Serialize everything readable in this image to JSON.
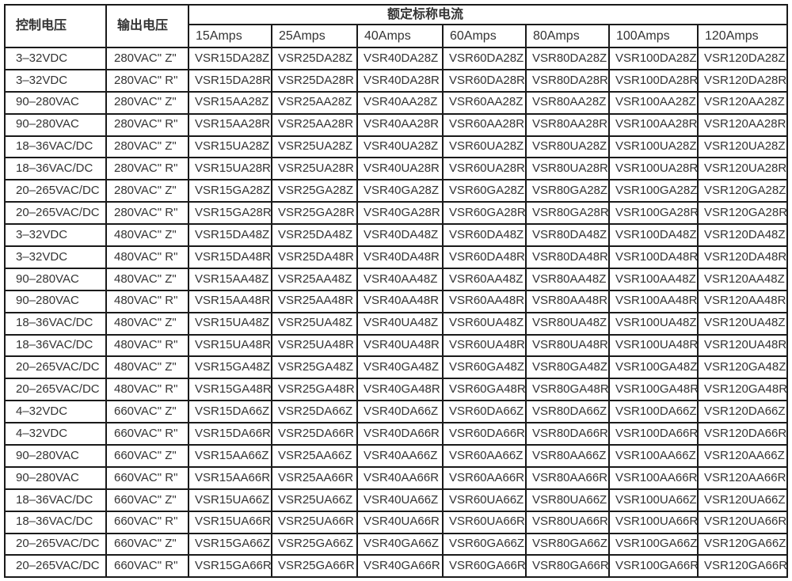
{
  "colors": {
    "border": "#1a1a1a",
    "text": "#333333",
    "background": "#ffffff"
  },
  "table": {
    "header": {
      "control_voltage_label": "控制电压",
      "output_voltage_label": "输出电压",
      "rated_current_label": "额定标称电流",
      "amp_columns": [
        "15Amps",
        "25Amps",
        "40Amps",
        "60Amps",
        "80Amps",
        "100Amps",
        "120Amps"
      ]
    },
    "rows": [
      {
        "control": "3–32VDC",
        "output": "280VAC\" Z\"",
        "parts": [
          "VSR15DA28Z",
          "VSR25DA28Z",
          "VSR40DA28Z",
          "VSR60DA28Z",
          "VSR80DA28Z",
          "VSR100DA28Z",
          "VSR120DA28Z"
        ]
      },
      {
        "control": "3–32VDC",
        "output": "280VAC\" R\"",
        "parts": [
          "VSR15DA28R",
          "VSR25DA28R",
          "VSR40DA28R",
          "VSR60DA28R",
          "VSR80DA28R",
          "VSR100DA28R",
          "VSR120DA28R"
        ]
      },
      {
        "control": "90–280VAC",
        "output": "280VAC\" Z\"",
        "parts": [
          "VSR15AA28Z",
          "VSR25AA28Z",
          "VSR40AA28Z",
          "VSR60AA28Z",
          "VSR80AA28Z",
          "VSR100AA28Z",
          "VSR120AA28Z"
        ]
      },
      {
        "control": "90–280VAC",
        "output": "280VAC\" R\"",
        "parts": [
          "VSR15AA28R",
          "VSR25AA28R",
          "VSR40AA28R",
          "VSR60AA28R",
          "VSR80AA28R",
          "VSR100AA28R",
          "VSR120AA28R"
        ]
      },
      {
        "control": "18–36VAC/DC",
        "output": "280VAC\" Z\"",
        "parts": [
          "VSR15UA28Z",
          "VSR25UA28Z",
          "VSR40UA28Z",
          "VSR60UA28Z",
          "VSR80UA28Z",
          "VSR100UA28Z",
          "VSR120UA28Z"
        ]
      },
      {
        "control": "18–36VAC/DC",
        "output": "280VAC\" R\"",
        "parts": [
          "VSR15UA28R",
          "VSR25UA28R",
          "VSR40UA28R",
          "VSR60UA28R",
          "VSR80UA28R",
          "VSR100UA28R",
          "VSR120UA28R"
        ]
      },
      {
        "control": "20–265VAC/DC",
        "output": "280VAC\" Z\"",
        "parts": [
          "VSR15GA28Z",
          "VSR25GA28Z",
          "VSR40GA28Z",
          "VSR60GA28Z",
          "VSR80GA28Z",
          "VSR100GA28Z",
          "VSR120GA28Z"
        ]
      },
      {
        "control": "20–265VAC/DC",
        "output": "280VAC\" R\"",
        "parts": [
          "VSR15GA28R",
          "VSR25GA28R",
          "VSR40GA28R",
          "VSR60GA28R",
          "VSR80GA28R",
          "VSR100GA28R",
          "VSR120GA28R"
        ]
      },
      {
        "control": "3–32VDC",
        "output": "480VAC\" Z\"",
        "parts": [
          "VSR15DA48Z",
          "VSR25DA48Z",
          "VSR40DA48Z",
          "VSR60DA48Z",
          "VSR80DA48Z",
          "VSR100DA48Z",
          "VSR120DA48Z"
        ]
      },
      {
        "control": "3–32VDC",
        "output": "480VAC\" R\"",
        "parts": [
          "VSR15DA48R",
          "VSR25DA48R",
          "VSR40DA48R",
          "VSR60DA48R",
          "VSR80DA48R",
          "VSR100DA48R",
          "VSR120DA48R"
        ]
      },
      {
        "control": "90–280VAC",
        "output": "480VAC\" Z\"",
        "parts": [
          "VSR15AA48Z",
          "VSR25AA48Z",
          "VSR40AA48Z",
          "VSR60AA48Z",
          "VSR80AA48Z",
          "VSR100AA48Z",
          "VSR120AA48Z"
        ]
      },
      {
        "control": "90–280VAC",
        "output": "480VAC\" R\"",
        "parts": [
          "VSR15AA48R",
          "VSR25AA48R",
          "VSR40AA48R",
          "VSR60AA48R",
          "VSR80AA48R",
          "VSR100AA48R",
          "VSR120AA48R"
        ]
      },
      {
        "control": "18–36VAC/DC",
        "output": "480VAC\" Z\"",
        "parts": [
          "VSR15UA48Z",
          "VSR25UA48Z",
          "VSR40UA48Z",
          "VSR60UA48Z",
          "VSR80UA48Z",
          "VSR100UA48Z",
          "VSR120UA48Z"
        ]
      },
      {
        "control": "18–36VAC/DC",
        "output": "480VAC\" R\"",
        "parts": [
          "VSR15UA48R",
          "VSR25UA48R",
          "VSR40UA48R",
          "VSR60UA48R",
          "VSR80UA48R",
          "VSR100UA48R",
          "VSR120UA48R"
        ]
      },
      {
        "control": "20–265VAC/DC",
        "output": "480VAC\" Z\"",
        "parts": [
          "VSR15GA48Z",
          "VSR25GA48Z",
          "VSR40GA48Z",
          "VSR60GA48Z",
          "VSR80GA48Z",
          "VSR100GA48Z",
          "VSR120GA48Z"
        ]
      },
      {
        "control": "20–265VAC/DC",
        "output": "480VAC\" R\"",
        "parts": [
          "VSR15GA48R",
          "VSR25GA48R",
          "VSR40GA48R",
          "VSR60GA48R",
          "VSR80GA48R",
          "VSR100GA48R",
          "VSR120GA48R"
        ]
      },
      {
        "control": "4–32VDC",
        "output": "660VAC\" Z\"",
        "parts": [
          "VSR15DA66Z",
          "VSR25DA66Z",
          "VSR40DA66Z",
          "VSR60DA66Z",
          "VSR80DA66Z",
          "VSR100DA66Z",
          "VSR120DA66Z"
        ]
      },
      {
        "control": "4–32VDC",
        "output": "660VAC\" R\"",
        "parts": [
          "VSR15DA66R",
          "VSR25DA66R",
          "VSR40DA66R",
          "VSR60DA66R",
          "VSR80DA66R",
          "VSR100DA66R",
          "VSR120DA66R"
        ]
      },
      {
        "control": "90–280VAC",
        "output": "660VAC\" Z\"",
        "parts": [
          "VSR15AA66Z",
          "VSR25AA66Z",
          "VSR40AA66Z",
          "VSR60AA66Z",
          "VSR80AA66Z",
          "VSR100AA66Z",
          "VSR120AA66Z"
        ]
      },
      {
        "control": "90–280VAC",
        "output": "660VAC\" R\"",
        "parts": [
          "VSR15AA66R",
          "VSR25AA66R",
          "VSR40AA66R",
          "VSR60AA66R",
          "VSR80AA66R",
          "VSR100AA66R",
          "VSR120AA66R"
        ]
      },
      {
        "control": "18–36VAC/DC",
        "output": "660VAC\" Z\"",
        "parts": [
          "VSR15UA66Z",
          "VSR25UA66Z",
          "VSR40UA66Z",
          "VSR60UA66Z",
          "VSR80UA66Z",
          "VSR100UA66Z",
          "VSR120UA66Z"
        ]
      },
      {
        "control": "18–36VAC/DC",
        "output": "660VAC\" R\"",
        "parts": [
          "VSR15UA66R",
          "VSR25UA66R",
          "VSR40UA66R",
          "VSR60UA66R",
          "VSR80UA66R",
          "VSR100UA66R",
          "VSR120UA66R"
        ]
      },
      {
        "control": "20–265VAC/DC",
        "output": "660VAC\" Z\"",
        "parts": [
          "VSR15GA66Z",
          "VSR25GA66Z",
          "VSR40GA66Z",
          "VSR60GA66Z",
          "VSR80GA66Z",
          "VSR100GA66Z",
          "VSR120GA66Z"
        ]
      },
      {
        "control": "20–265VAC/DC",
        "output": "660VAC\" R\"",
        "parts": [
          "VSR15GA66R",
          "VSR25GA66R",
          "VSR40GA66R",
          "VSR60GA66R",
          "VSR80GA66R",
          "VSR100GA66R",
          "VSR120GA66R"
        ]
      }
    ]
  }
}
